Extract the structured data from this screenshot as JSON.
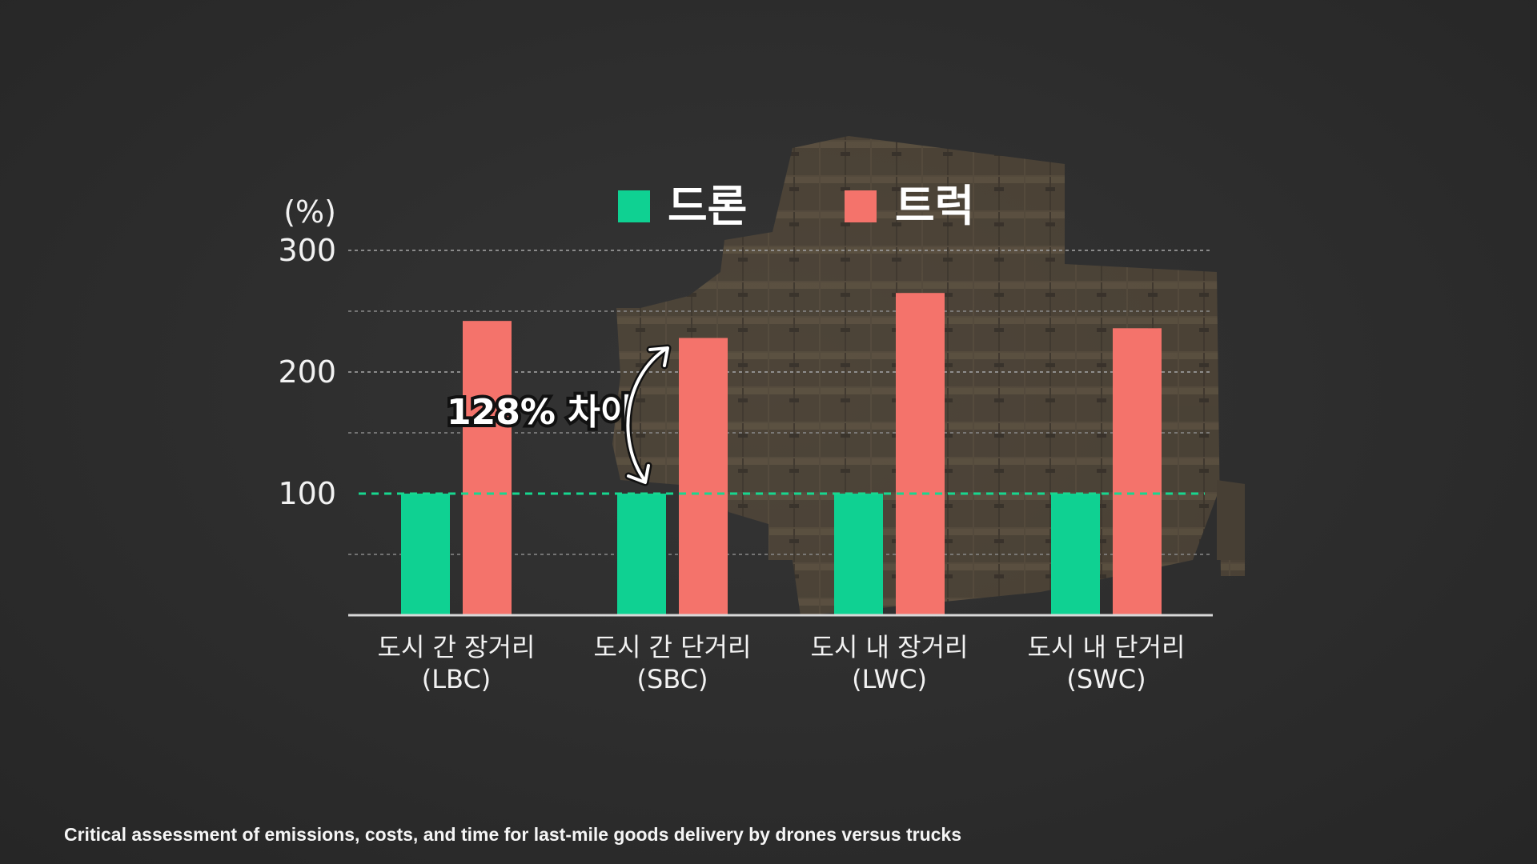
{
  "chart_data": {
    "type": "bar",
    "unit_label": "(%)",
    "yticks": [
      100,
      200,
      300
    ],
    "ylim": [
      0,
      300
    ],
    "grid": true,
    "legend_position": "top-center",
    "categories": [
      [
        "도시 간 장거리",
        "(LBC)"
      ],
      [
        "도시 간 단거리",
        "(SBC)"
      ],
      [
        "도시 내 장거리",
        "(LWC)"
      ],
      [
        "도시 내 단거리",
        "(SWC)"
      ]
    ],
    "series": [
      {
        "name": "드론",
        "color": "#0fd192",
        "values": [
          100,
          100,
          100,
          100
        ]
      },
      {
        "name": "트럭",
        "color": "#f4736b",
        "values": [
          242,
          228,
          265,
          236
        ]
      }
    ],
    "reference_line": {
      "value": 100,
      "color": "#17d78f"
    },
    "annotation": {
      "text": "128% 차이",
      "category_index": 1,
      "from": 100,
      "to": 228
    }
  },
  "source_text": "Critical assessment of emissions, costs, and time for last-mile goods delivery by drones versus trucks"
}
